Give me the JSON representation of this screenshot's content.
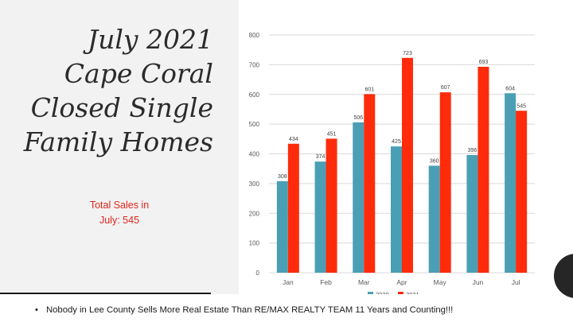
{
  "title_lines": [
    "July 2021",
    "Cape Coral",
    "Closed Single",
    "Family Homes"
  ],
  "total_sales_lines": [
    "Total Sales in",
    "July:  545"
  ],
  "footer_text": "Nobody in Lee County Sells More Real Estate Than RE/MAX REALTY  TEAM  11 Years and Counting!!!",
  "footer_bullet": "•",
  "colors": {
    "2020": "#4a9fb5",
    "2021": "#ff2b0a",
    "accent_text": "#e3231b"
  },
  "chart_data": {
    "type": "bar",
    "categories": [
      "Jan",
      "Feb",
      "Mar",
      "Apr",
      "May",
      "Jun",
      "Jul"
    ],
    "series": [
      {
        "name": "2020",
        "values": [
          308,
          374,
          506,
          425,
          360,
          396,
          604
        ]
      },
      {
        "name": "2021",
        "values": [
          434,
          451,
          601,
          723,
          607,
          693,
          545
        ]
      }
    ],
    "ylim": [
      0,
      800
    ],
    "yticks": [
      0,
      100,
      200,
      300,
      400,
      500,
      600,
      700,
      800
    ],
    "grid": true,
    "legend_position": "bottom",
    "data_labels": true
  }
}
